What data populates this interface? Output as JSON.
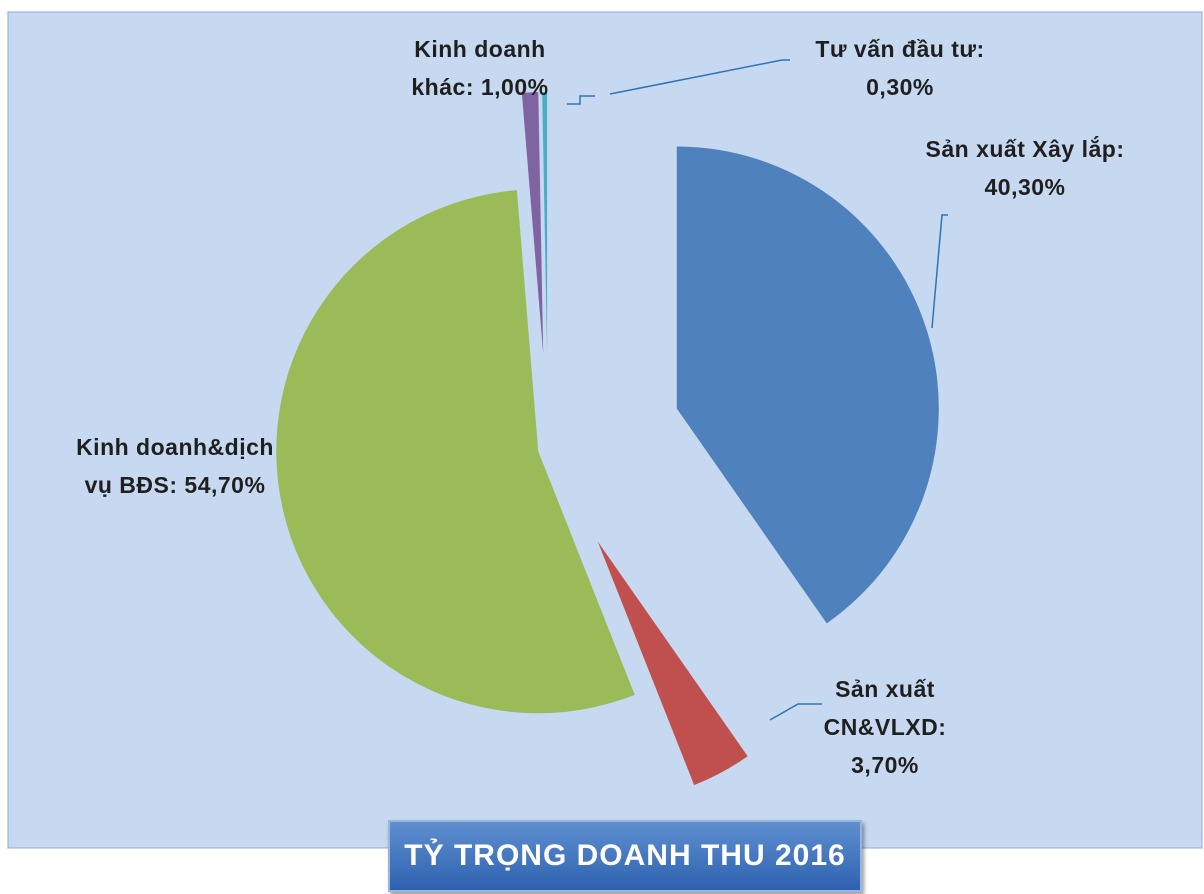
{
  "chart_data": {
    "type": "pie",
    "title": "TỶ TRỌNG DOANH THU 2016",
    "categories": [
      "Sản xuất Xây lắp:",
      "Sản xuất CN&VLXD:",
      "Kinh doanh&dịch vụ BĐS:",
      "Kinh doanh khác:",
      "Tư vấn đầu tư:"
    ],
    "values": [
      40.3,
      3.7,
      54.7,
      1.0,
      0.3
    ],
    "value_labels": [
      "40,30%",
      "3,70%",
      "54,70%",
      "1,00%",
      "0,30%"
    ],
    "colors": [
      "#4f81bd",
      "#c0504d",
      "#9bbb59",
      "#8064a2",
      "#4bacc6"
    ]
  }
}
